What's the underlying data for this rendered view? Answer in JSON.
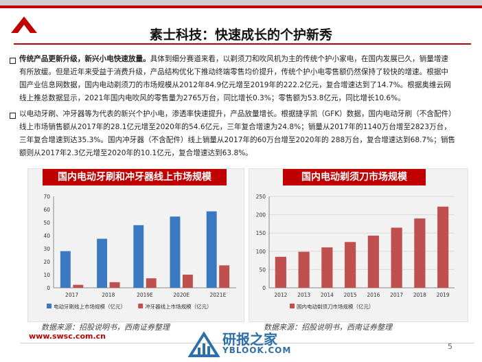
{
  "title": "素士科技：快速成长的个护新秀",
  "paragraph1": {
    "bold": "传统产品更新升级，新兴小电快速放量。",
    "text": "具体到细分赛道来看，以剃须刀和吹风机为主的传统个护小家电，在国内发展已久，销量增速有所放缓。但是近年来受益于消费升级，产品结构优化下推动终端零售均价提升，传统个护小电零售额仍然保持了较快的增速。根据中国产业信息网数据，国内电动剃须刀的市场规模从2012年84.9亿元增至2019年的222.2亿元，复合增速达到了14.7%。根据奥维云网线上推总数据显示，2021年国内电吹风的零售量为2765万台，同比增长0.3%；零售额为53.8亿元，同比增长10.6%。"
  },
  "paragraph2": {
    "text": "以电动牙刷、冲牙器等为代表的新兴个护小电，渗透率快速提升，产品放量增长。根据捷孚凯（GFK）数据，国内电动牙刷（不含配件）线上市场销售额从2017年的28.1亿元增至2020年的54.6亿元，三年复合增速为24.8%；销量从2017年的1140万台增至2823万台，三年复合增速到达35.3%。国内冲牙器（不含配件）线上销量从2017年的60万台增至2020年的 288万台，复合增速达到68.7%；销售额则从2017年2.3亿元增至2020年的10.1亿元，复合增速达到63.8%。"
  },
  "left_panel_title": "国内电动牙刷和冲牙器线上市场规模",
  "right_panel_title": "国内电动剃须刀市场规模",
  "source_left": "数据来源：招股说明书，西南证券整理",
  "source_right": "数据来源：招股说明书，西南证券整理",
  "url": "www.swsc.com.cn",
  "page_number": "5",
  "watermark": {
    "main": "研报之家",
    "sub": "YBLOOK.COM"
  },
  "colors": {
    "accent": "#c00000",
    "blue": "#3a78c2",
    "red": "#c0504d"
  },
  "chart_data": [
    {
      "type": "bar",
      "categories": [
        "2017",
        "2018",
        "2019E",
        "2020E",
        "2021E"
      ],
      "series": [
        {
          "name": "电动牙刷线上市场规模（亿元）",
          "values": [
            28.1,
            37.6,
            48.0,
            54.6,
            58.6
          ]
        },
        {
          "name": "冲牙器线上市场规模（亿元）",
          "values": [
            2.3,
            4.3,
            7.3,
            10.1,
            17.2
          ]
        }
      ],
      "ylim": [
        0,
        70
      ],
      "yticks": [
        0,
        10,
        20,
        30,
        40,
        50,
        60,
        70
      ],
      "legend": "bottom",
      "grid": false
    },
    {
      "type": "bar",
      "categories": [
        "2012",
        "2013",
        "2014",
        "2015",
        "2016",
        "2017",
        "2018",
        "2019"
      ],
      "series": [
        {
          "name": "国内电动剃须刀市场规模（亿元）",
          "values": [
            84.9,
            98.6,
            110.6,
            125.3,
            142.8,
            164.6,
            189.8,
            222.2
          ]
        }
      ],
      "ylim": [
        0,
        250
      ],
      "yticks": [
        0,
        50,
        100,
        150,
        200,
        250
      ],
      "legend": "bottom",
      "grid": true
    }
  ]
}
